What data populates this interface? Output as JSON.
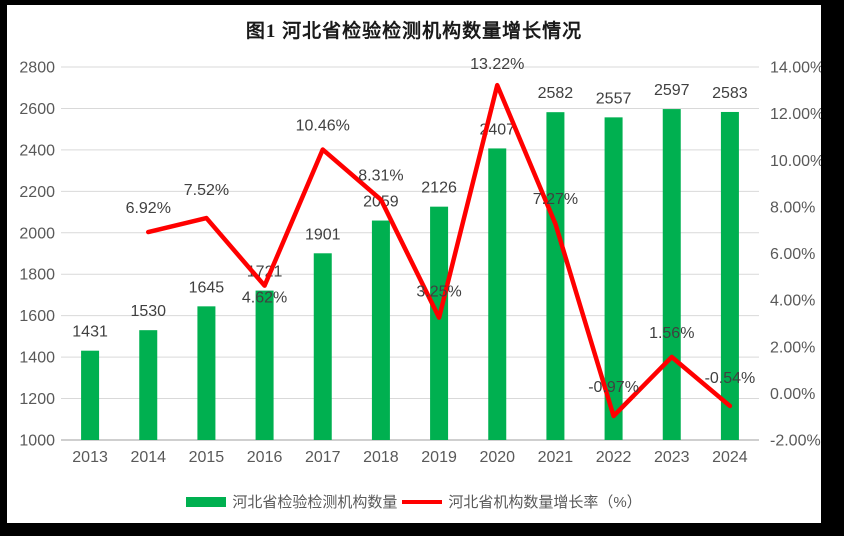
{
  "title": "图1 河北省检验检测机构数量增长情况",
  "colors": {
    "bar": "#00B050",
    "line": "#FF0000",
    "data_label": "#404040",
    "axis_text": "#595959",
    "gridline": "#D9D9D9",
    "axis_line": "#BFBFBF",
    "frame": "#000000",
    "background": "#FFFFFF"
  },
  "legend": [
    {
      "label": "河北省检验检测机构数量",
      "marker": "bar"
    },
    {
      "label": "河北省机构数量增长率（%）",
      "marker": "line"
    }
  ],
  "chart_data": {
    "type": "combo",
    "title": "图1 河北省检验检测机构数量增长情况",
    "categories": [
      "2013",
      "2014",
      "2015",
      "2016",
      "2017",
      "2018",
      "2019",
      "2020",
      "2021",
      "2022",
      "2023",
      "2024"
    ],
    "series": [
      {
        "name": "河北省检验检测机构数量",
        "type": "bar",
        "axis": "left",
        "values": [
          1431,
          1530,
          1645,
          1721,
          1901,
          2059,
          2126,
          2407,
          2582,
          2557,
          2597,
          2583
        ]
      },
      {
        "name": "河北省机构数量增长率（%）",
        "type": "line",
        "axis": "right",
        "values": [
          null,
          6.92,
          7.52,
          4.62,
          10.46,
          8.31,
          3.25,
          13.22,
          7.27,
          -0.97,
          1.56,
          -0.54
        ]
      }
    ],
    "y_left": {
      "min": 1000,
      "max": 2800,
      "step": 200,
      "tick_labels": [
        "1000",
        "1200",
        "1400",
        "1600",
        "1800",
        "2000",
        "2200",
        "2400",
        "2600",
        "2800"
      ]
    },
    "y_right": {
      "min": -2,
      "max": 14,
      "step": 2,
      "format": "0.00%",
      "tick_labels": [
        "-2.00%",
        "0.00%",
        "2.00%",
        "4.00%",
        "6.00%",
        "8.00%",
        "10.00%",
        "12.00%",
        "14.00%"
      ]
    },
    "grid": "horizontal, primary axis only",
    "legend_position": "bottom",
    "data_labels": "all points labeled",
    "line_label_dy": [
      null,
      -19,
      -23,
      17,
      -19,
      -19,
      -21,
      -16,
      -20,
      -24,
      -19,
      -23
    ]
  }
}
